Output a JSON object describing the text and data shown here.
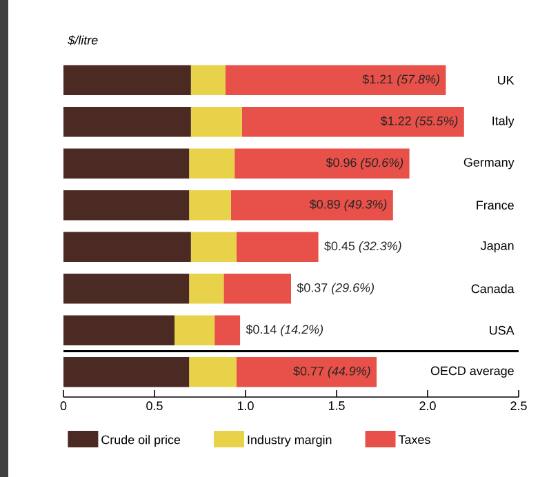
{
  "chart_data": {
    "type": "bar",
    "orientation": "horizontal",
    "stacked": true,
    "ylabel": "$/litre",
    "categories": [
      "UK",
      "Italy",
      "Germany",
      "France",
      "Japan",
      "Canada",
      "USA",
      "OECD average"
    ],
    "series": [
      {
        "name": "Crude oil price",
        "color": "#4a2a22",
        "values": [
          0.7,
          0.7,
          0.69,
          0.69,
          0.7,
          0.69,
          0.61,
          0.69
        ]
      },
      {
        "name": "Industry margin",
        "color": "#e8d24a",
        "values": [
          0.19,
          0.28,
          0.25,
          0.23,
          0.25,
          0.19,
          0.22,
          0.26
        ]
      },
      {
        "name": "Taxes",
        "color": "#e8504a",
        "values": [
          1.21,
          1.22,
          0.96,
          0.89,
          0.45,
          0.37,
          0.14,
          0.77
        ],
        "value_labels": [
          "$1.21 *(57.8%)*",
          "$1.22 *(55.5%)*",
          "$0.96 *(50.6%)*",
          "$0.89 *(49.3%)*",
          "$0.45 *(32.3%)*",
          "$0.37 *(29.6%)*",
          "$0.14 *(14.2%)*",
          "$0.77 *(44.9%)*"
        ]
      }
    ],
    "xlim": [
      0,
      2.5
    ],
    "xticks": [
      0,
      0.5,
      {
        "value": 1.0,
        "label": "1.0"
      },
      1.5,
      {
        "value": 2.0,
        "label": "2.0"
      },
      2.5
    ],
    "legend": "bottom"
  }
}
